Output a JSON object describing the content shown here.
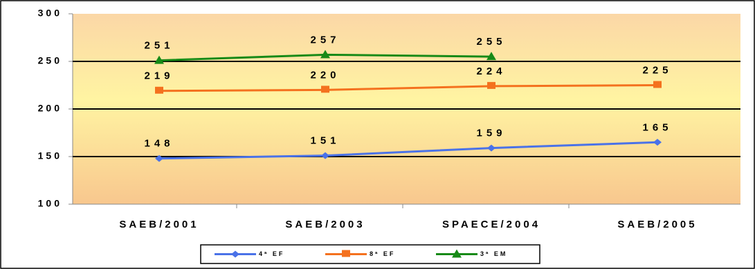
{
  "chart_data": {
    "type": "line",
    "categories": [
      "SAEB/2001",
      "SAEB/2003",
      "SPAECE/2004",
      "SAEB/2005"
    ],
    "series": [
      {
        "name": "4ª EF",
        "color": "#4a72e8",
        "marker": "diamond",
        "values": [
          148,
          151,
          159,
          165
        ]
      },
      {
        "name": "8ª EF",
        "color": "#f4711e",
        "marker": "square",
        "values": [
          219,
          220,
          224,
          225
        ]
      },
      {
        "name": "3ª EM",
        "color": "#178a17",
        "marker": "triangle",
        "values": [
          251,
          257,
          255,
          null
        ]
      }
    ],
    "ylim": [
      100,
      300
    ],
    "yticks": [
      100,
      150,
      200,
      250,
      300
    ],
    "grid": true,
    "legend": "bottom"
  }
}
